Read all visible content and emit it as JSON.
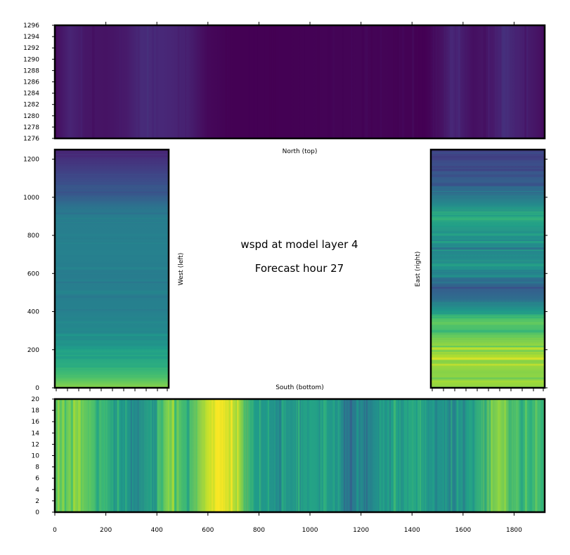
{
  "chart_data": [
    {
      "type": "heatmap",
      "panel": "north",
      "label": "North (top)",
      "x_range": [
        0,
        1920
      ],
      "y_range": [
        1276,
        1296
      ],
      "y_ticks": [
        "1276",
        "1278",
        "1280",
        "1282",
        "1284",
        "1286",
        "1288",
        "1290",
        "1292",
        "1294",
        "1296"
      ],
      "colormap": "viridis",
      "value_range_normalized": [
        0.0,
        0.15
      ],
      "column_profile": [
        {
          "x": 0,
          "v": 0.03
        },
        {
          "x": 60,
          "v": 0.1
        },
        {
          "x": 120,
          "v": 0.06
        },
        {
          "x": 200,
          "v": 0.05
        },
        {
          "x": 280,
          "v": 0.07
        },
        {
          "x": 340,
          "v": 0.12
        },
        {
          "x": 420,
          "v": 0.11
        },
        {
          "x": 520,
          "v": 0.09
        },
        {
          "x": 600,
          "v": 0.02
        },
        {
          "x": 700,
          "v": 0.0
        },
        {
          "x": 900,
          "v": 0.0
        },
        {
          "x": 1200,
          "v": 0.01
        },
        {
          "x": 1450,
          "v": 0.0
        },
        {
          "x": 1520,
          "v": 0.05
        },
        {
          "x": 1560,
          "v": 0.11
        },
        {
          "x": 1640,
          "v": 0.04
        },
        {
          "x": 1720,
          "v": 0.07
        },
        {
          "x": 1760,
          "v": 0.13
        },
        {
          "x": 1820,
          "v": 0.09
        },
        {
          "x": 1880,
          "v": 0.06
        },
        {
          "x": 1920,
          "v": 0.03
        }
      ]
    },
    {
      "type": "heatmap",
      "panel": "west",
      "label": "West (left)",
      "y_range": [
        0,
        1250
      ],
      "y_ticks": [
        "0",
        "200",
        "400",
        "600",
        "800",
        "1000",
        "1200"
      ],
      "colormap": "viridis",
      "row_profile": [
        {
          "y": 0,
          "v": 0.82
        },
        {
          "y": 60,
          "v": 0.7
        },
        {
          "y": 120,
          "v": 0.62
        },
        {
          "y": 200,
          "v": 0.55
        },
        {
          "y": 300,
          "v": 0.47
        },
        {
          "y": 400,
          "v": 0.44
        },
        {
          "y": 500,
          "v": 0.43
        },
        {
          "y": 600,
          "v": 0.42
        },
        {
          "y": 700,
          "v": 0.44
        },
        {
          "y": 800,
          "v": 0.43
        },
        {
          "y": 900,
          "v": 0.42
        },
        {
          "y": 950,
          "v": 0.38
        },
        {
          "y": 1000,
          "v": 0.3
        },
        {
          "y": 1100,
          "v": 0.22
        },
        {
          "y": 1200,
          "v": 0.14
        },
        {
          "y": 1250,
          "v": 0.1
        }
      ]
    },
    {
      "type": "heatmap",
      "panel": "east",
      "label": "East (right)",
      "y_range": [
        0,
        1250
      ],
      "y_ticks": [
        "0",
        "200",
        "400",
        "600",
        "800",
        "1000",
        "1200"
      ],
      "colormap": "viridis",
      "row_profile": [
        {
          "y": 0,
          "v": 0.85
        },
        {
          "y": 80,
          "v": 0.82
        },
        {
          "y": 160,
          "v": 0.88
        },
        {
          "y": 220,
          "v": 0.84
        },
        {
          "y": 300,
          "v": 0.7
        },
        {
          "y": 360,
          "v": 0.74
        },
        {
          "y": 400,
          "v": 0.55
        },
        {
          "y": 470,
          "v": 0.35
        },
        {
          "y": 520,
          "v": 0.3
        },
        {
          "y": 560,
          "v": 0.42
        },
        {
          "y": 640,
          "v": 0.52
        },
        {
          "y": 700,
          "v": 0.46
        },
        {
          "y": 800,
          "v": 0.5
        },
        {
          "y": 900,
          "v": 0.62
        },
        {
          "y": 960,
          "v": 0.48
        },
        {
          "y": 1050,
          "v": 0.32
        },
        {
          "y": 1150,
          "v": 0.26
        },
        {
          "y": 1250,
          "v": 0.18
        }
      ]
    },
    {
      "type": "heatmap",
      "panel": "south",
      "label": "South (bottom)",
      "x_range": [
        0,
        1920
      ],
      "y_range": [
        0,
        20
      ],
      "x_ticks": [
        "0",
        "200",
        "400",
        "600",
        "800",
        "1000",
        "1200",
        "1400",
        "1600",
        "1800"
      ],
      "y_ticks": [
        "0",
        "2",
        "4",
        "6",
        "8",
        "10",
        "12",
        "14",
        "16",
        "18",
        "20"
      ],
      "colormap": "viridis",
      "column_profile": [
        {
          "x": 0,
          "v": 0.72
        },
        {
          "x": 80,
          "v": 0.8
        },
        {
          "x": 160,
          "v": 0.7
        },
        {
          "x": 260,
          "v": 0.55
        },
        {
          "x": 320,
          "v": 0.48
        },
        {
          "x": 400,
          "v": 0.62
        },
        {
          "x": 440,
          "v": 0.8
        },
        {
          "x": 520,
          "v": 0.65
        },
        {
          "x": 600,
          "v": 0.92
        },
        {
          "x": 660,
          "v": 0.98
        },
        {
          "x": 720,
          "v": 0.85
        },
        {
          "x": 780,
          "v": 0.55
        },
        {
          "x": 880,
          "v": 0.5
        },
        {
          "x": 1000,
          "v": 0.58
        },
        {
          "x": 1100,
          "v": 0.52
        },
        {
          "x": 1160,
          "v": 0.4
        },
        {
          "x": 1220,
          "v": 0.45
        },
        {
          "x": 1300,
          "v": 0.55
        },
        {
          "x": 1400,
          "v": 0.6
        },
        {
          "x": 1480,
          "v": 0.52
        },
        {
          "x": 1560,
          "v": 0.5
        },
        {
          "x": 1640,
          "v": 0.58
        },
        {
          "x": 1740,
          "v": 0.82
        },
        {
          "x": 1820,
          "v": 0.65
        },
        {
          "x": 1920,
          "v": 0.7
        }
      ]
    }
  ],
  "center_title": {
    "line1": "wspd at model layer 4",
    "line2": "Forecast hour 27"
  }
}
